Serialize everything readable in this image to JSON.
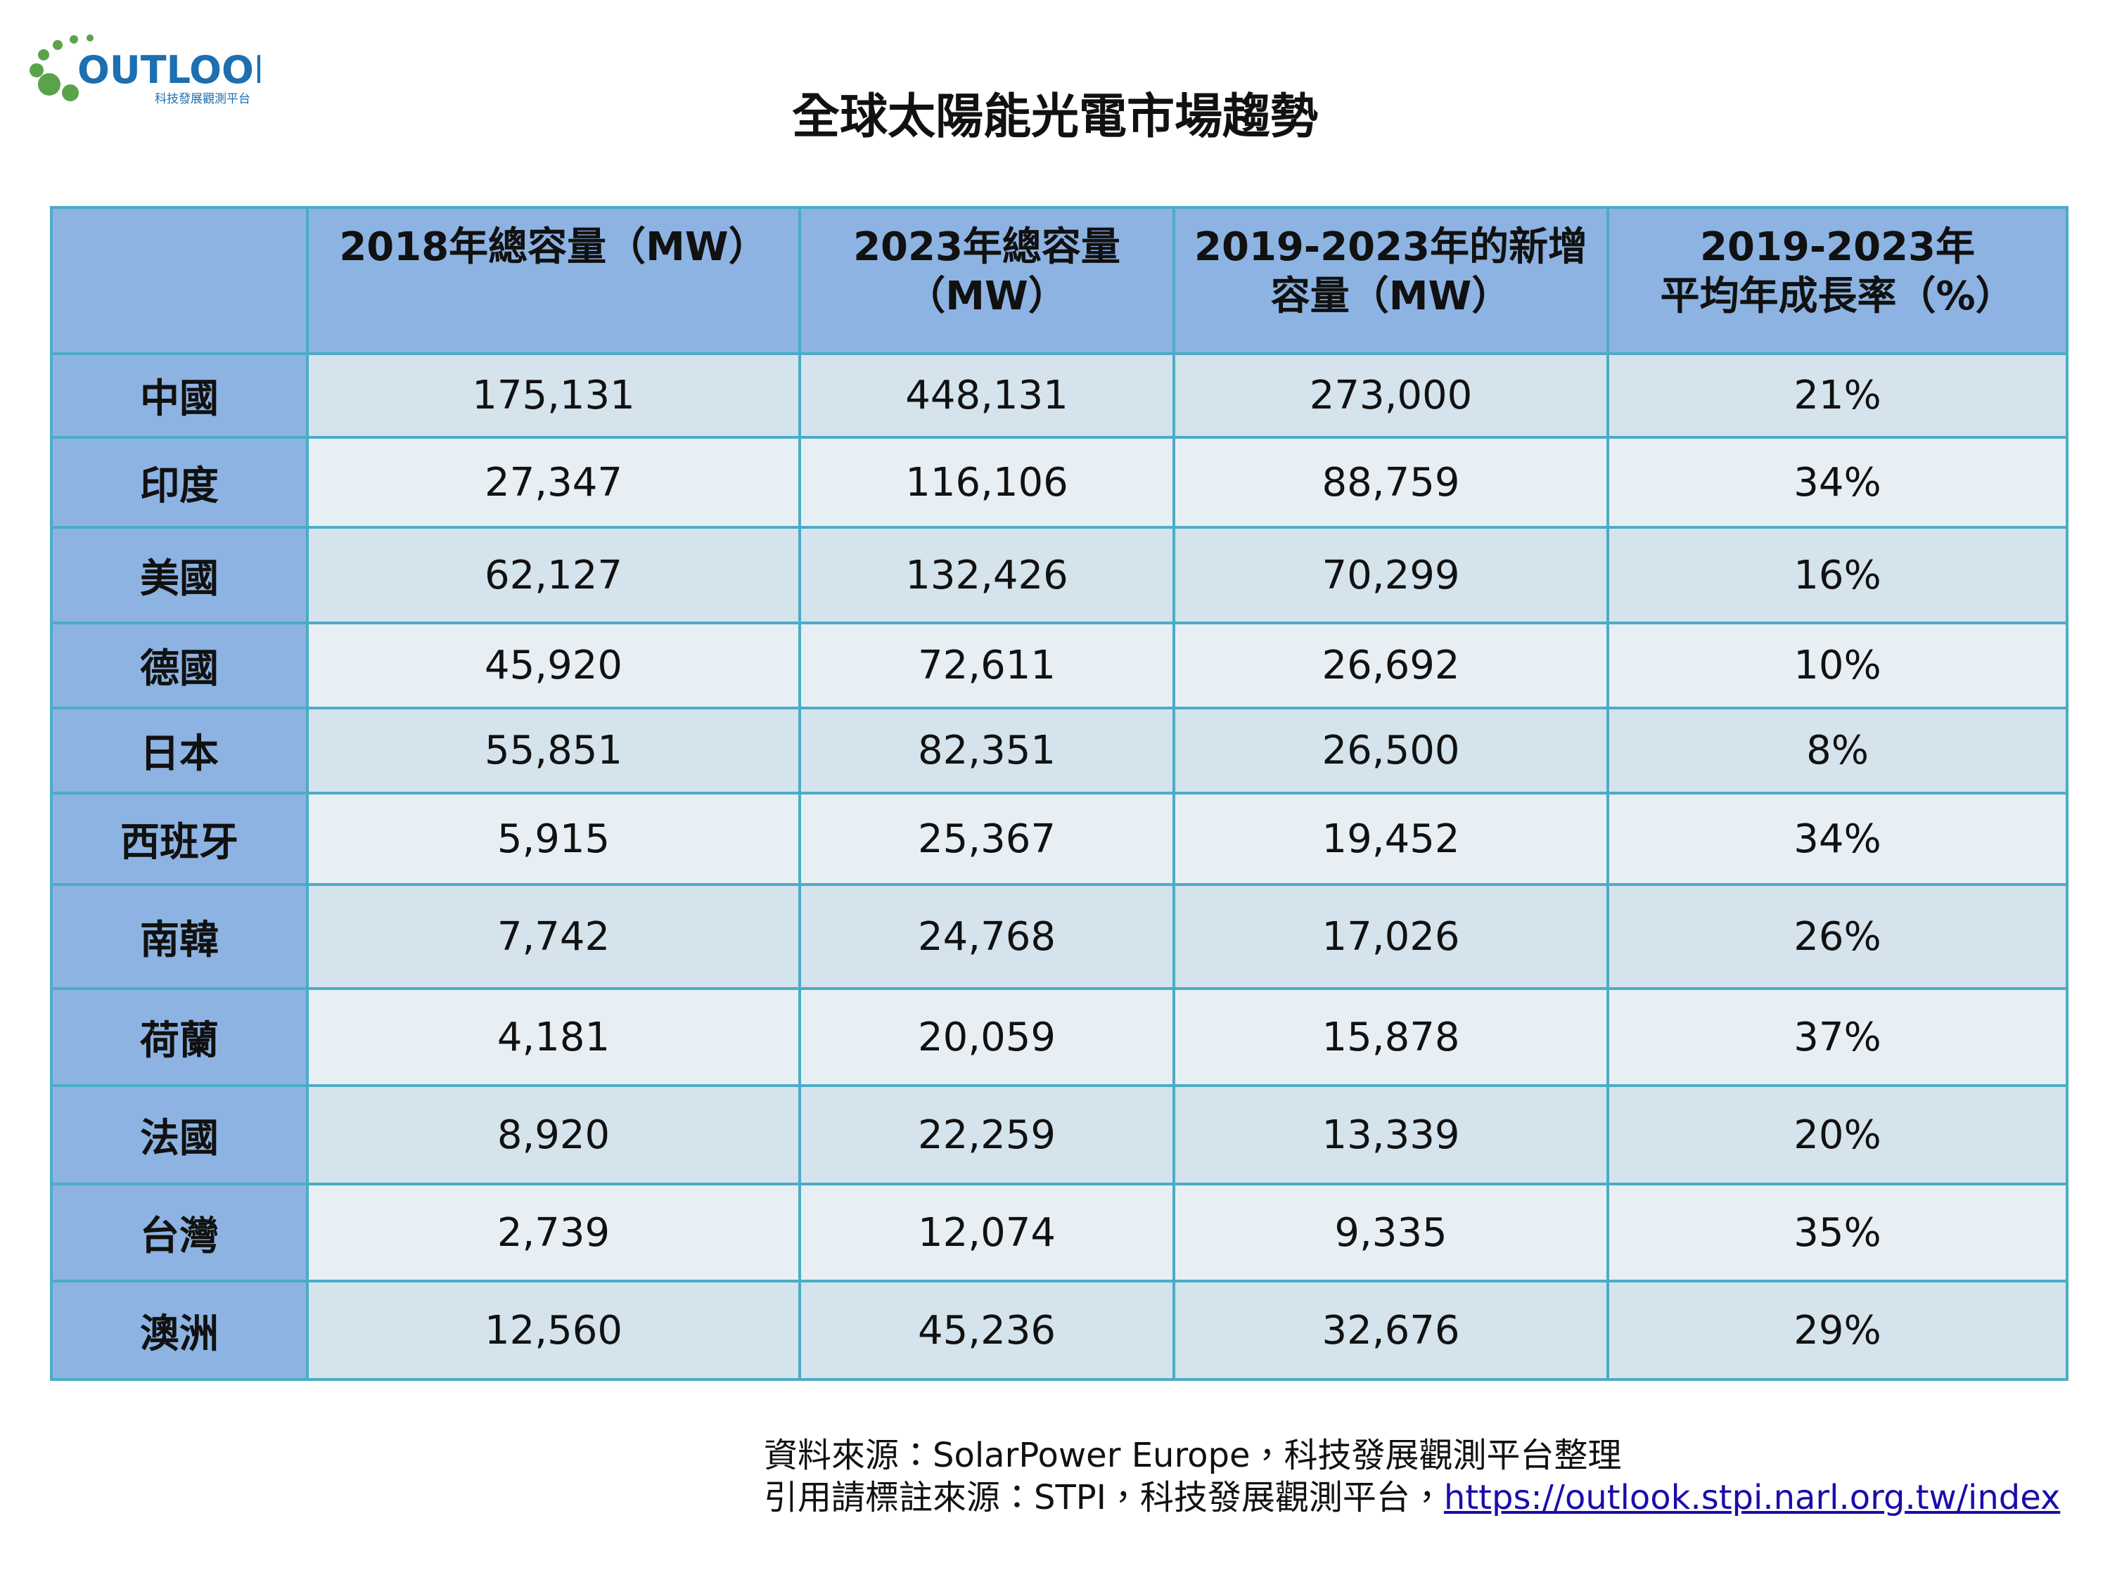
{
  "logo": {
    "name": "OUTLOOK",
    "subtitle": "科技發展觀測平台"
  },
  "title": "全球太陽能光電市場趨勢",
  "table": {
    "header": [
      [
        "2018年總容量（MW）"
      ],
      [
        "2023年總容量",
        "（MW）"
      ],
      [
        "2019-2023年的新增",
        "容量（MW）"
      ],
      [
        "2019-2023年",
        "平均年成長率（%）"
      ]
    ],
    "rows": [
      [
        "中國",
        "175,131",
        "448,131",
        "273,000",
        "21%"
      ],
      [
        "印度",
        "27,347",
        "116,106",
        "88,759",
        "34%"
      ],
      [
        "美國",
        "62,127",
        "132,426",
        "70,299",
        "16%"
      ],
      [
        "德國",
        "45,920",
        "72,611",
        "26,692",
        "10%"
      ],
      [
        "日本",
        "55,851",
        "82,351",
        "26,500",
        "8%"
      ],
      [
        "西班牙",
        "5,915",
        "25,367",
        "19,452",
        "34%"
      ],
      [
        "南韓",
        "7,742",
        "24,768",
        "17,026",
        "26%"
      ],
      [
        "荷蘭",
        "4,181",
        "20,059",
        "15,878",
        "37%"
      ],
      [
        "法國",
        "8,920",
        "22,259",
        "13,339",
        "20%"
      ],
      [
        "台灣",
        "2,739",
        "12,074",
        "9,335",
        "35%"
      ],
      [
        "澳洲",
        "12,560",
        "45,236",
        "32,676",
        "29%"
      ]
    ]
  },
  "footer": {
    "source": "資料來源：SolarPower Europe，科技發展觀測平台整理",
    "citation": "引用請標註來源：STPI，科技發展觀測平台，",
    "link": "https://outlook.stpi.narl.org.tw/index"
  }
}
